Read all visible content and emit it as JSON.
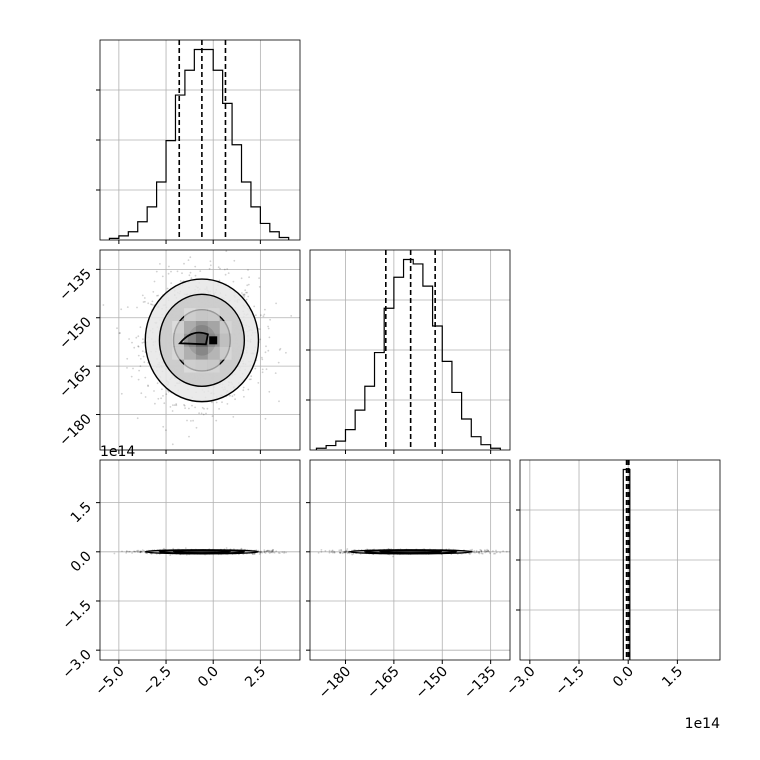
{
  "chart_data": {
    "type": "corner",
    "grid": true,
    "parameters": [
      {
        "name": "",
        "range": [
          -6.0,
          4.6
        ],
        "ticks": [
          -5.0,
          -2.5,
          0.0,
          2.5
        ],
        "tick_labels": [
          "−5.0",
          "−2.5",
          "0.0",
          "2.5"
        ],
        "offset_label": "",
        "quantiles": [
          -1.8,
          -0.6,
          0.65
        ]
      },
      {
        "name": "",
        "range": [
          -191,
          -129
        ],
        "ticks": [
          -180,
          -165,
          -150,
          -135
        ],
        "tick_labels": [
          "−180",
          "−165",
          "−150",
          "−135"
        ],
        "offset_label": "",
        "quantiles": [
          -167.5,
          -159.8,
          -152.2
        ]
      },
      {
        "name": "",
        "range": [
          -3.3,
          2.8
        ],
        "ticks": [
          -3.0,
          -1.5,
          0.0,
          1.5
        ],
        "tick_labels": [
          "−3.0",
          "−1.5",
          "0.0",
          "1.5"
        ],
        "offset_label": "1e14",
        "quantiles": [
          -0.05,
          0.0,
          0.02
        ]
      }
    ],
    "histograms": [
      {
        "param": 0,
        "bins": [
          -5.5,
          -5.0,
          -4.5,
          -4.0,
          -3.5,
          -3.0,
          -2.5,
          -2.0,
          -1.5,
          -1.0,
          -0.5,
          0.0,
          0.5,
          1.0,
          1.5,
          2.0,
          2.5,
          3.0,
          3.5,
          4.0
        ],
        "counts": [
          2,
          5,
          10,
          22,
          40,
          70,
          120,
          175,
          205,
          230,
          230,
          205,
          165,
          115,
          70,
          40,
          20,
          10,
          3
        ]
      },
      {
        "param": 1,
        "bins": [
          -189,
          -186,
          -183,
          -180,
          -177,
          -174,
          -171,
          -168,
          -165,
          -162,
          -159,
          -156,
          -153,
          -150,
          -147,
          -144,
          -141,
          -138,
          -135,
          -132
        ],
        "counts": [
          2,
          5,
          10,
          23,
          45,
          72,
          110,
          160,
          195,
          215,
          210,
          185,
          140,
          100,
          65,
          35,
          15,
          6,
          2
        ]
      },
      {
        "param": 2,
        "bins": [
          -0.15,
          0.05
        ],
        "counts": [
          240
        ]
      }
    ],
    "joint_2d": [
      {
        "x_param": 0,
        "y_param": 1,
        "mean": [
          -0.6,
          -157
        ],
        "sigma": [
          1.5,
          9.5
        ],
        "contour_levels": 3,
        "peak": [
          0.0,
          -157
        ]
      },
      {
        "x_param": 0,
        "y_param": 2,
        "mean": [
          -0.6,
          0.0
        ],
        "sigma": [
          1.5,
          0.03
        ],
        "contour_levels": 3
      },
      {
        "x_param": 1,
        "y_param": 2,
        "mean": [
          -159.8,
          0.0
        ],
        "sigma": [
          9.5,
          0.03
        ],
        "contour_levels": 3
      }
    ]
  }
}
